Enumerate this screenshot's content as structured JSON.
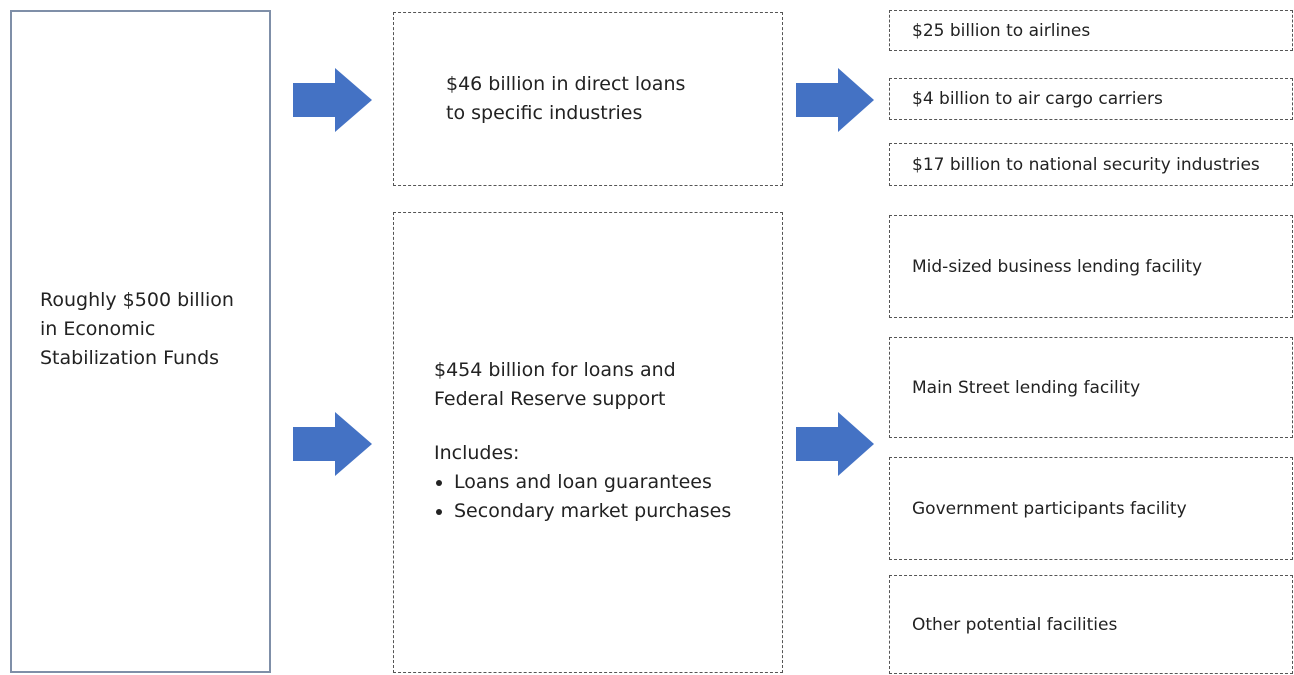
{
  "source": {
    "lines": [
      "Roughly $500 billion",
      "in Economic",
      "Stabilization Funds"
    ]
  },
  "middle": [
    {
      "lines": [
        "$46 billion in direct loans",
        "to specific industries"
      ]
    },
    {
      "lines": [
        "$454 billion for loans and",
        "Federal Reserve support"
      ],
      "includes_label": "Includes:",
      "bullets": [
        "Loans and loan guarantees",
        "Secondary market purchases"
      ]
    }
  ],
  "right_top": [
    "$25 billion to airlines",
    "$4 billion to air cargo carriers",
    "$17 billion to national security industries"
  ],
  "right_bottom": [
    "Mid-sized business lending facility",
    "Main Street lending facility",
    "Government participants facility",
    "Other potential facilities"
  ]
}
